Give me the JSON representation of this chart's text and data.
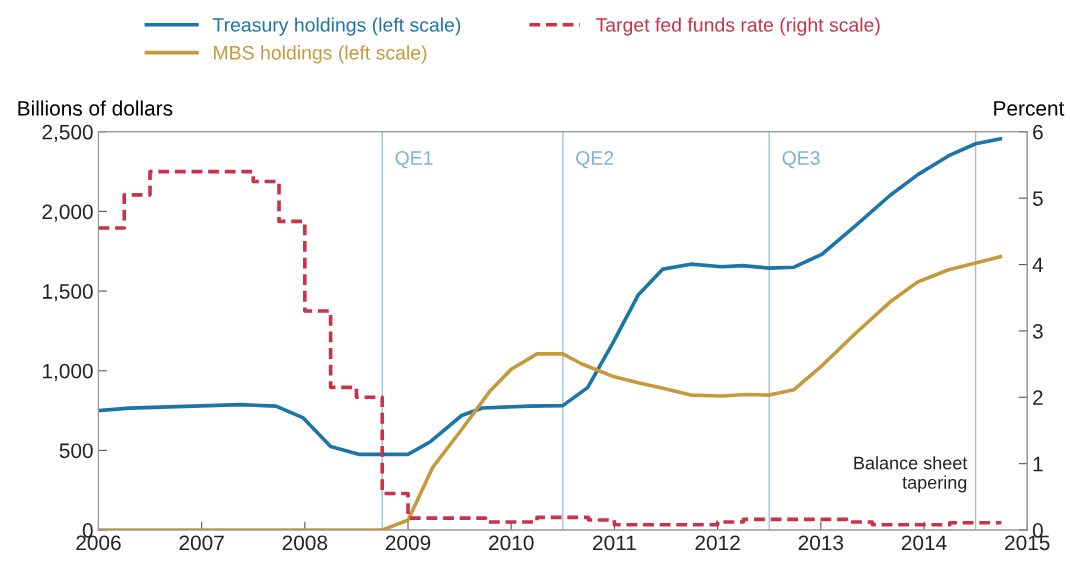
{
  "chart_data": {
    "type": "line",
    "ylabel": "Billions of dollars",
    "y2label": "Percent",
    "series": [
      {
        "name": "Treasury holdings (left scale)",
        "color": "#1b75a6",
        "line_style": "solid",
        "x": [
          2006.0,
          2006.3,
          2007.38,
          2007.72,
          2007.98,
          2008.25,
          2008.52,
          2009.0,
          2009.22,
          2009.52,
          2009.72,
          2010.17,
          2010.5,
          2010.74,
          2010.98,
          2011.23,
          2011.47,
          2011.74,
          2012.04,
          2012.24,
          2012.5,
          2012.74,
          2013.01,
          2013.34,
          2013.67,
          2013.94,
          2014.24,
          2014.5,
          2014.74
        ],
        "values": [
          750,
          765,
          787,
          778,
          706,
          525,
          475,
          475,
          556,
          719,
          766,
          778,
          781,
          894,
          1169,
          1475,
          1638,
          1669,
          1653,
          1660,
          1644,
          1650,
          1731,
          1912,
          2100,
          2231,
          2350,
          2425,
          2456
        ]
      },
      {
        "name": "MBS holdings (left scale)",
        "color": "#c49a3c",
        "line_style": "solid",
        "x": [
          2006.0,
          2008.75,
          2009.0,
          2009.24,
          2009.52,
          2009.79,
          2010.0,
          2010.25,
          2010.5,
          2010.68,
          2010.98,
          2011.23,
          2011.47,
          2011.74,
          2012.04,
          2012.27,
          2012.5,
          2012.74,
          2013.01,
          2013.34,
          2013.67,
          2013.94,
          2014.24,
          2014.5,
          2014.74
        ],
        "values": [
          0,
          0,
          62,
          394,
          631,
          869,
          1009,
          1106,
          1106,
          1044,
          966,
          925,
          890,
          847,
          841,
          851,
          847,
          881,
          1031,
          1237,
          1431,
          1558,
          1634,
          1677,
          1716
        ]
      },
      {
        "name": "Target fed funds rate (right scale)",
        "type": "step",
        "axis": "y2",
        "color": "#c8324a",
        "line_style": "dashed",
        "x": [
          2006.0,
          2006.25,
          2006.5,
          2007.5,
          2007.75,
          2008.0,
          2008.25,
          2008.5,
          2008.75,
          2009.0,
          2009.75,
          2010.25,
          2010.75,
          2011.0,
          2012.0,
          2012.25,
          2013.25,
          2013.5,
          2014.25,
          2014.75
        ],
        "values": [
          4.55,
          5.05,
          5.4,
          5.25,
          4.65,
          3.3,
          2.15,
          2.0,
          0.55,
          0.18,
          0.12,
          0.19,
          0.15,
          0.08,
          0.12,
          0.16,
          0.12,
          0.08,
          0.11,
          0.11
        ]
      }
    ],
    "xlim": [
      2006,
      2015
    ],
    "xticks": [
      2006,
      2007,
      2008,
      2009,
      2010,
      2011,
      2012,
      2013,
      2014,
      2015
    ],
    "ylim": [
      0,
      2500
    ],
    "yticks": [
      0,
      500,
      {
        "value": 1000,
        "label": "1,000"
      },
      {
        "value": 1500,
        "label": "1,500"
      },
      {
        "value": 2000,
        "label": "2,000"
      },
      {
        "value": 2500,
        "label": "2,500"
      }
    ],
    "y2lim": [
      0,
      6
    ],
    "y2ticks": [
      0,
      1,
      2,
      3,
      4,
      5,
      6
    ],
    "ref_lines": [
      {
        "axis": "x",
        "value": 2008.75,
        "label": "QE1",
        "color": "#9cc3df"
      },
      {
        "axis": "x",
        "value": 2010.5,
        "label": "QE2",
        "color": "#9cc3df"
      },
      {
        "axis": "x",
        "value": 2012.5,
        "label": "QE3",
        "color": "#9cc3df"
      },
      {
        "axis": "x",
        "value": 2014.5,
        "label": "Balance sheet\ntapering",
        "color": "#b0b8c8"
      }
    ],
    "grid": false,
    "legend": "top",
    "marker": "none"
  }
}
